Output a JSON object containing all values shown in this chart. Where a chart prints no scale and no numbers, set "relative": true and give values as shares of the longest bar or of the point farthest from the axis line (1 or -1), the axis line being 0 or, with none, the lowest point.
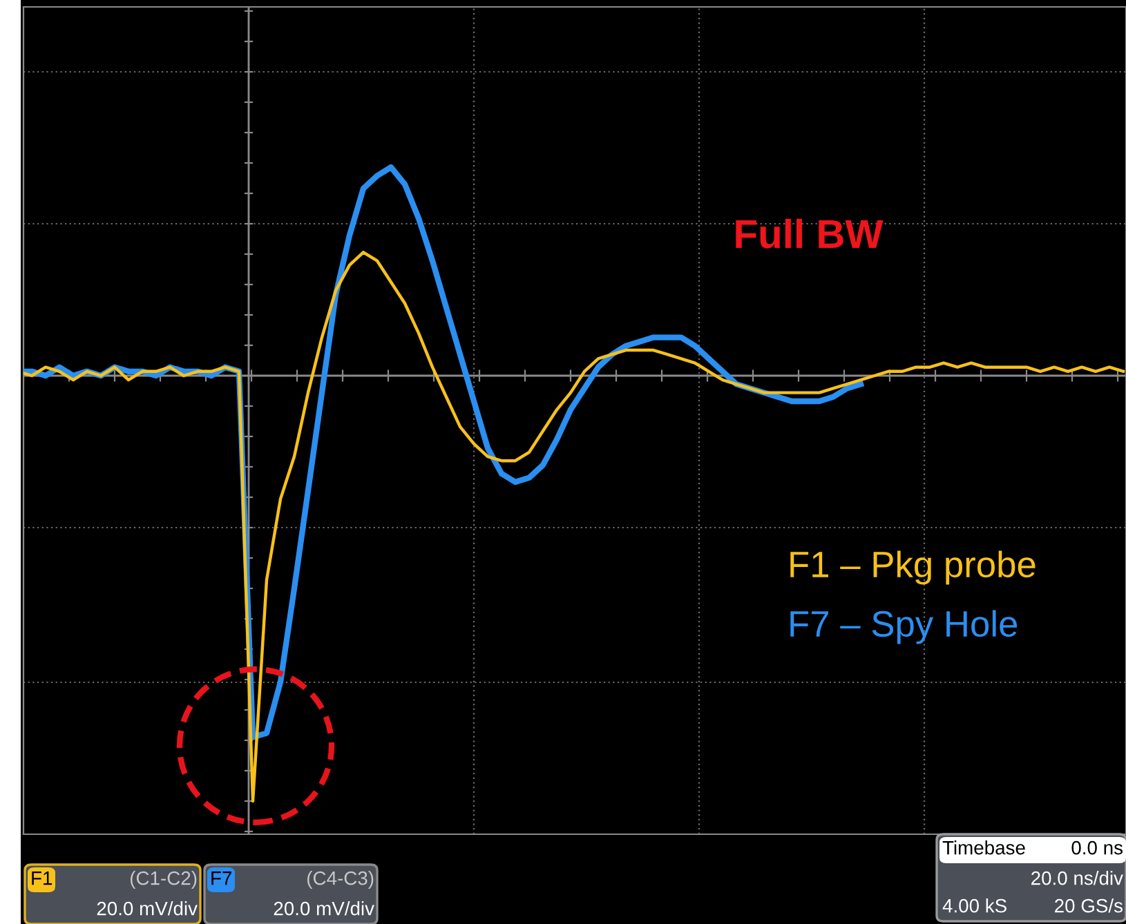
{
  "chart_data": {
    "type": "line",
    "relative": true,
    "grid": true,
    "categories": [
      null,
      null,
      null,
      null,
      null,
      null,
      null,
      null,
      null,
      null,
      null,
      null,
      null,
      null,
      null,
      null,
      null,
      null,
      null,
      null,
      null,
      null,
      null,
      null,
      null,
      null,
      null,
      null,
      null,
      null,
      null,
      null,
      null,
      null,
      null,
      null,
      null,
      null,
      null,
      null,
      null,
      null,
      null,
      null,
      null,
      null,
      null,
      null,
      null,
      null,
      null,
      null,
      null,
      null,
      null,
      null,
      null,
      null,
      null,
      null,
      null,
      null,
      null,
      null,
      null,
      null,
      null,
      null,
      null,
      null,
      null,
      null,
      null,
      null,
      null,
      null,
      null,
      null,
      null,
      null,
      null
    ],
    "series": [
      {
        "name": "F1 – Pkg probe",
        "color": "#f7c11a",
        "values": [
          0.01,
          0,
          0.02,
          0.01,
          -0.01,
          0.01,
          0,
          0.02,
          -0.01,
          0.01,
          0.01,
          0.02,
          0,
          0.01,
          0.01,
          0.02,
          0.01,
          -1,
          -0.48,
          -0.29,
          -0.19,
          -0.04,
          0.09,
          0.2,
          0.26,
          0.29,
          0.27,
          0.22,
          0.17,
          0.1,
          0.02,
          -0.05,
          -0.12,
          -0.16,
          -0.19,
          -0.2,
          -0.2,
          -0.18,
          -0.13,
          -0.08,
          -0.04,
          0.01,
          0.04,
          0.05,
          0.06,
          0.06,
          0.06,
          0.05,
          0.04,
          0.03,
          0.01,
          -0.01,
          -0.02,
          -0.03,
          -0.04,
          -0.04,
          -0.04,
          -0.04,
          -0.04,
          -0.03,
          -0.02,
          -0.01,
          0,
          0.01,
          0.01,
          0.02,
          0.02,
          0.03,
          0.02,
          0.03,
          0.02,
          0.02,
          0.02,
          0.02,
          0.01,
          0.02,
          0.01,
          0.02,
          0.01,
          0.02,
          0.01
        ]
      },
      {
        "name": "F7 – Spy Hole",
        "color": "#2a8ff0",
        "values": [
          0.01,
          0.01,
          0,
          0.02,
          0,
          0.01,
          0,
          0.02,
          0.01,
          0.01,
          0,
          0.02,
          0.01,
          0.01,
          0,
          0.02,
          0.01,
          -0.85,
          -0.84,
          -0.72,
          -0.5,
          -0.27,
          -0.04,
          0.19,
          0.33,
          0.44,
          0.47,
          0.49,
          0.45,
          0.37,
          0.27,
          0.16,
          0.05,
          -0.06,
          -0.17,
          -0.23,
          -0.25,
          -0.24,
          -0.21,
          -0.15,
          -0.08,
          -0.03,
          0.02,
          0.05,
          0.07,
          0.08,
          0.09,
          0.09,
          0.09,
          0.07,
          0.04,
          0.01,
          -0.02,
          -0.03,
          -0.04,
          -0.05,
          -0.06,
          -0.06,
          -0.06,
          -0.05,
          -0.03,
          -0.02,
          null,
          null,
          null,
          null,
          null,
          null,
          null,
          null,
          null,
          null,
          null,
          null,
          null,
          null,
          null,
          null,
          null,
          null,
          null
        ]
      }
    ],
    "annotations": [
      "Full BW",
      "F1",
      "(C1-C2)",
      "20.0 mV/div",
      "F7",
      "(C4-C3)",
      "20.0 mV/div",
      "Timebase",
      "0.0 ns",
      "20.0 ns/div",
      "4.00 kS",
      "20 GS/s"
    ]
  }
}
